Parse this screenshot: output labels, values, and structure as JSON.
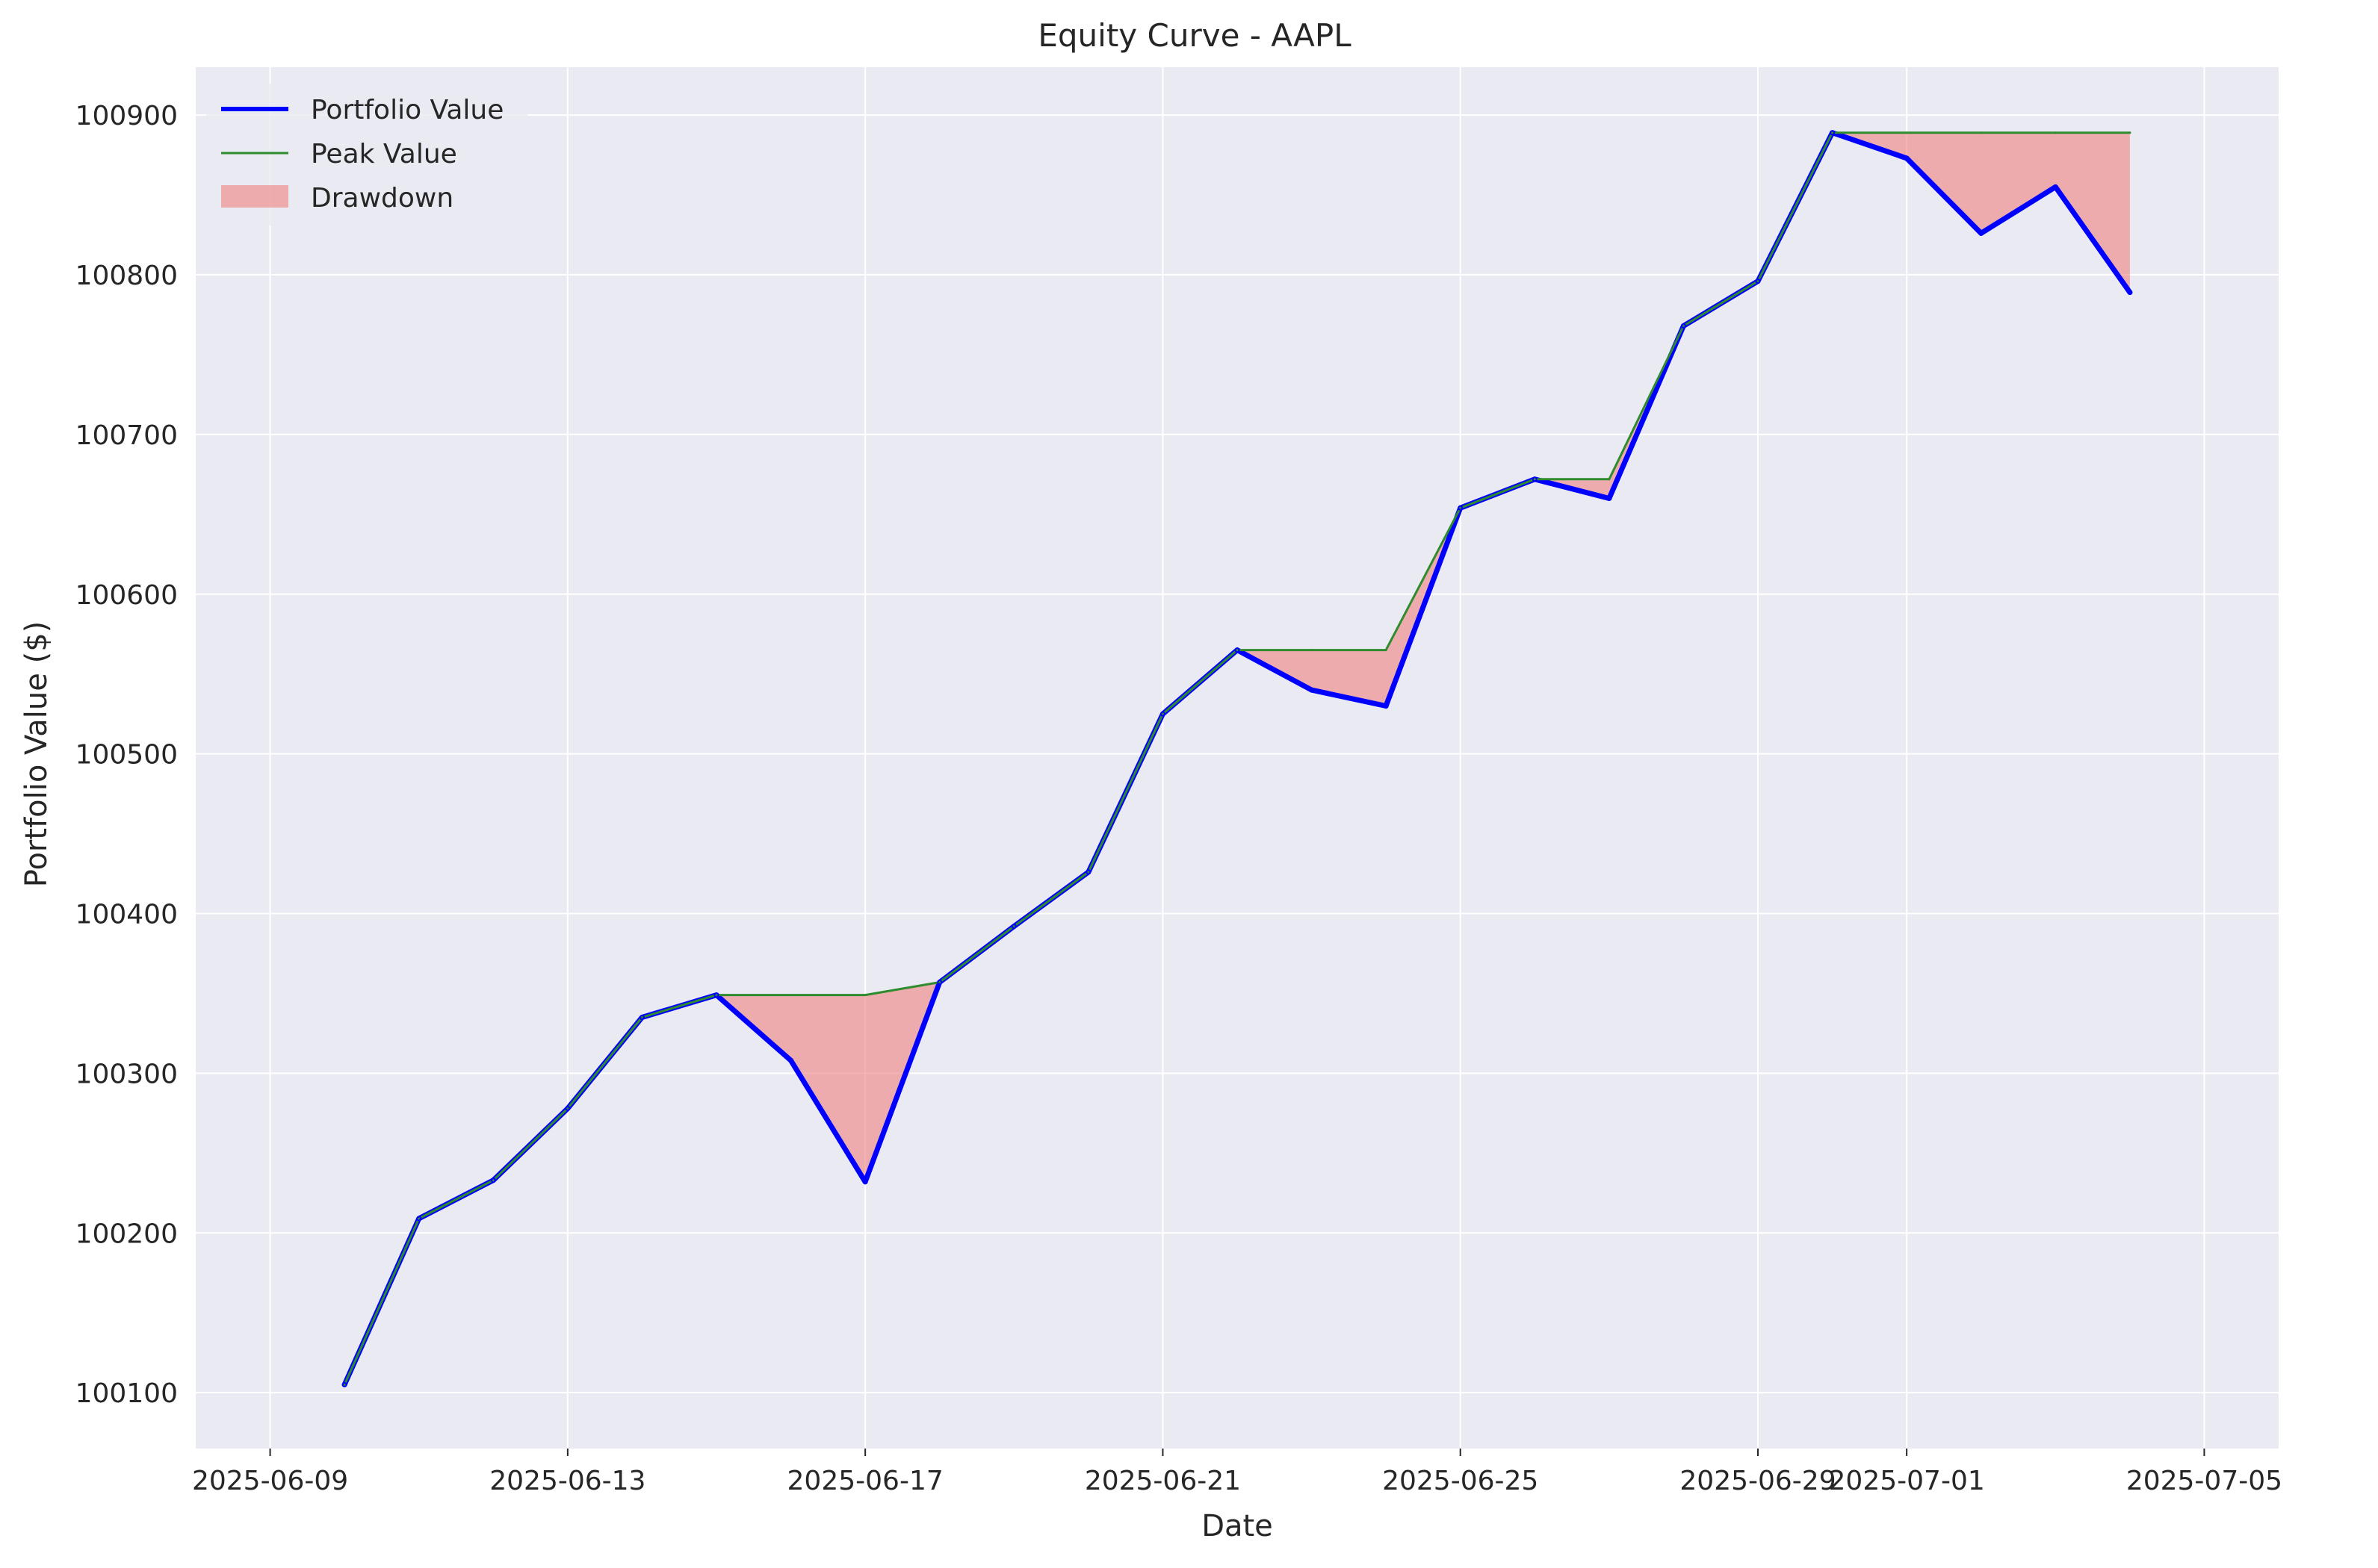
{
  "chart_data": {
    "type": "line",
    "title": "Equity Curve - AAPL",
    "xlabel": "Date",
    "ylabel": "Portfolio Value ($)",
    "grid": true,
    "legend_position": "top-left",
    "x_tick_labels": [
      "2025-06-09",
      "2025-06-13",
      "2025-06-17",
      "2025-06-21",
      "2025-06-25",
      "2025-06-29",
      "2025-07-01",
      "2025-07-05"
    ],
    "y_tick_labels": [
      "100100",
      "100200",
      "100300",
      "100400",
      "100500",
      "100600",
      "100700",
      "100800",
      "100900"
    ],
    "xlim": [
      "2025-06-08",
      "2025-07-06"
    ],
    "ylim": [
      100065,
      100930
    ],
    "x": [
      "2025-06-10",
      "2025-06-11",
      "2025-06-12",
      "2025-06-13",
      "2025-06-14",
      "2025-06-15",
      "2025-06-16",
      "2025-06-17",
      "2025-06-18",
      "2025-06-19",
      "2025-06-20",
      "2025-06-21",
      "2025-06-22",
      "2025-06-23",
      "2025-06-24",
      "2025-06-25",
      "2025-06-26",
      "2025-06-27",
      "2025-06-28",
      "2025-06-29",
      "2025-06-30",
      "2025-07-01",
      "2025-07-02",
      "2025-07-03",
      "2025-07-04"
    ],
    "series": [
      {
        "name": "Portfolio Value",
        "color": "#0000ff",
        "values": [
          100105,
          100209,
          100233,
          100278,
          100335,
          100349,
          100308,
          100232,
          100357,
          100392,
          100426,
          100525,
          100565,
          100540,
          100530,
          100654,
          100672,
          100660,
          100768,
          100796,
          100889,
          100873,
          100826,
          100855,
          100789
        ]
      },
      {
        "name": "Peak Value",
        "color": "#2e8b2e",
        "values": [
          100105,
          100209,
          100233,
          100278,
          100335,
          100349,
          100349,
          100349,
          100357,
          100392,
          100426,
          100525,
          100565,
          100565,
          100565,
          100654,
          100672,
          100672,
          100768,
          100796,
          100889,
          100889,
          100889,
          100889,
          100889
        ]
      }
    ],
    "fill": {
      "name": "Drawdown",
      "color": "#f08080",
      "between": [
        "Peak Value",
        "Portfolio Value"
      ]
    }
  }
}
